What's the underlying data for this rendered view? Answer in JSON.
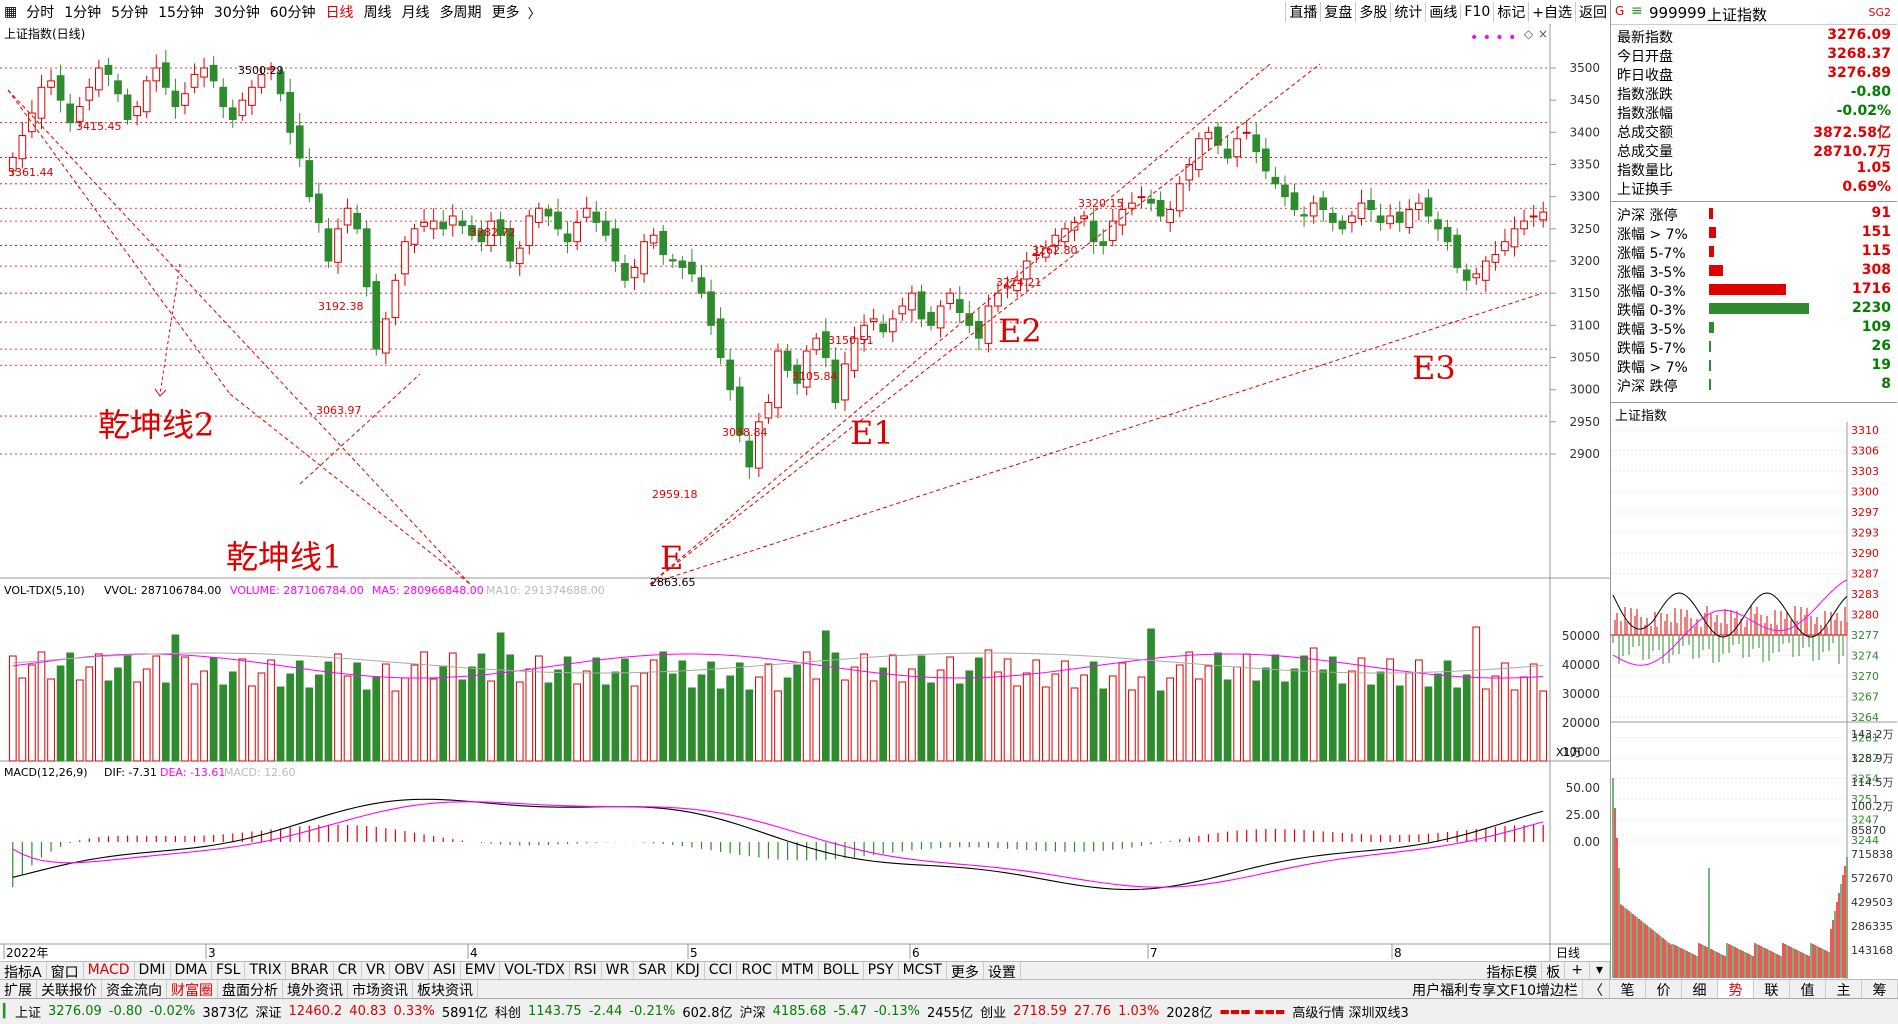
{
  "toolbar": {
    "periods": [
      "分时",
      "1分钟",
      "5分钟",
      "15分钟",
      "30分钟",
      "60分钟",
      "日线",
      "周线",
      "月线",
      "多周期",
      "更多"
    ],
    "active_period": "日线",
    "right_buttons": [
      "直播",
      "复盘",
      "多股",
      "统计",
      "画线",
      "F10",
      "标记",
      "+自选",
      "返回"
    ]
  },
  "main_chart": {
    "title": "上证指数(日线)",
    "price_axis": [
      "3500",
      "3450",
      "3400",
      "3350",
      "3300",
      "3250",
      "3200",
      "3150",
      "3100",
      "3050",
      "3000",
      "2950",
      "2900"
    ],
    "annotations": [
      "3500.29",
      "3415.45",
      "3361.44",
      "3282.72",
      "3192.38",
      "3063.97",
      "3150.51",
      "3105.84",
      "3038.84",
      "2959.18",
      "2863.65",
      "3320.15",
      "3262.80",
      "3224.21"
    ],
    "drawn_labels": {
      "line2": "乾坤线2",
      "line1": "乾坤线1",
      "e": "E",
      "e1": "E1",
      "e2": "E2",
      "e3": "E3"
    },
    "colors": {
      "up": "#e00000",
      "down": "#2e8b2e",
      "grid": "#e00000"
    }
  },
  "volume": {
    "header": {
      "name": "VOL-TDX(5,10)",
      "vvol": "VVOL: 287106784.00",
      "volume": "VOLUME: 287106784.00",
      "ma5": "MA5: 280966848.00",
      "ma10": "MA10: 291374688.00"
    },
    "axis": [
      "50000",
      "40000",
      "30000",
      "20000",
      "10000"
    ],
    "unit": "X1万"
  },
  "macd": {
    "header": {
      "name": "MACD(12,26,9)",
      "dif": "DIF: -7.31",
      "dea": "DEA: -13.61",
      "macd": "MACD: 12.60"
    },
    "axis": [
      "50.00",
      "25.00",
      "0.00"
    ]
  },
  "date_axis": {
    "labels": [
      "2022年",
      "3",
      "4",
      "5",
      "6",
      "7",
      "8"
    ],
    "right": "日线"
  },
  "indicator_tabs": [
    "指标A",
    "窗口",
    "MACD",
    "DMI",
    "DMA",
    "FSL",
    "TRIX",
    "BRAR",
    "CR",
    "VR",
    "OBV",
    "ASI",
    "EMV",
    "VOL-TDX",
    "RSI",
    "WR",
    "SAR",
    "KDJ",
    "CCI",
    "ROC",
    "MTM",
    "BOLL",
    "PSY",
    "MCST",
    "更多",
    "设置"
  ],
  "indicator_tabs_right": [
    "指标E模",
    "板"
  ],
  "nav_tabs": [
    "扩展",
    "关联报价",
    "资金流向",
    "财富圈",
    "盘面分析",
    "境外资讯",
    "市场资讯",
    "板块资讯"
  ],
  "nav_right": "用户福利专享文F10增边栏",
  "quote": {
    "code": "999999",
    "name": "上证指数",
    "badge": "SG2",
    "rows": [
      {
        "label": "最新指数",
        "value": "3276.09"
      },
      {
        "label": "今日开盘",
        "value": "3268.37"
      },
      {
        "label": "昨日收盘",
        "value": "3276.89"
      },
      {
        "label": "指数涨跌",
        "value": "-0.80"
      },
      {
        "label": "指数涨幅",
        "value": "-0.02%"
      },
      {
        "label": "总成交额",
        "value": "3872.58亿"
      },
      {
        "label": "总成交量",
        "value": "28710.7万"
      },
      {
        "label": "指数量比",
        "value": "1.05"
      },
      {
        "label": "上证换手",
        "value": "0.69%"
      }
    ],
    "breadth": [
      {
        "label": "沪深 涨停",
        "value": "91",
        "ratio": 0.04,
        "color": "#e00000"
      },
      {
        "label": "涨幅 > 7%",
        "value": "151",
        "ratio": 0.07,
        "color": "#e00000"
      },
      {
        "label": "涨幅 5-7%",
        "value": "115",
        "ratio": 0.05,
        "color": "#e00000"
      },
      {
        "label": "涨幅 3-5%",
        "value": "308",
        "ratio": 0.14,
        "color": "#e00000"
      },
      {
        "label": "涨幅 0-3%",
        "value": "1716",
        "ratio": 0.77,
        "color": "#e00000"
      },
      {
        "label": "跌幅 0-3%",
        "value": "2230",
        "ratio": 1.0,
        "color": "#2e8b2e"
      },
      {
        "label": "跌幅 3-5%",
        "value": "109",
        "ratio": 0.05,
        "color": "#2e8b2e"
      },
      {
        "label": "跌幅 5-7%",
        "value": "26",
        "ratio": 0.01,
        "color": "#2e8b2e"
      },
      {
        "label": "跌幅 > 7%",
        "value": "19",
        "ratio": 0.01,
        "color": "#2e8b2e"
      },
      {
        "label": "沪深 跌停",
        "value": "8",
        "ratio": 0.005,
        "color": "#2e8b2e"
      }
    ]
  },
  "mini": {
    "title": "上证指数",
    "price_axis": [
      "3310",
      "3306",
      "3303",
      "3300",
      "3297",
      "3293",
      "3290",
      "3287",
      "3283",
      "3280",
      "3277",
      "3274",
      "3270",
      "3267",
      "3264",
      "3261",
      "3257",
      "3254",
      "3251",
      "3247",
      "3244"
    ],
    "vol_axis": [
      "143.2万",
      "128.9万",
      "114.5万",
      "100.2万",
      "85870",
      "715838",
      "572670",
      "429503",
      "286335",
      "143168"
    ]
  },
  "side_tabs": [
    "笔",
    "价",
    "细",
    "势",
    "联",
    "值",
    "主",
    "筹"
  ],
  "side_active": "势",
  "status": {
    "sh": {
      "name": "上证",
      "price": "3276.09",
      "chg": "-0.80",
      "pct": "-0.02%",
      "amt": "3873亿"
    },
    "sz": {
      "name": "深证",
      "price": "12460.2",
      "chg": "40.83",
      "pct": "0.33%",
      "amt": "5891亿"
    },
    "kc": {
      "name": "科创",
      "price": "1143.75",
      "chg": "-2.44",
      "pct": "-0.21%",
      "amt": "602.8亿"
    },
    "hs": {
      "name": "沪深",
      "price": "4185.68",
      "chg": "-5.47",
      "pct": "-0.13%",
      "amt": "2455亿"
    },
    "cy": {
      "name": "创业",
      "price": "2718.59",
      "chg": "27.76",
      "pct": "1.03%",
      "amt": "2028亿"
    },
    "right": "高级行情 深圳双线3"
  }
}
